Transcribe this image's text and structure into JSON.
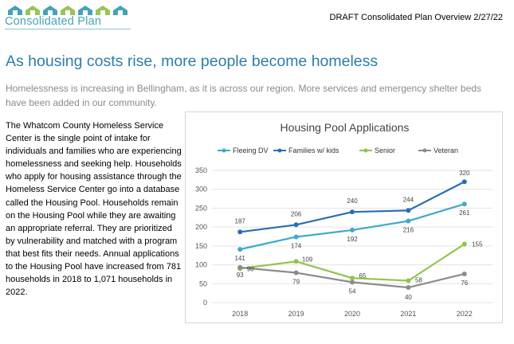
{
  "header": {
    "logo_text": "Consolidated Plan",
    "doc_title": "DRAFT Consolidated Plan Overview 2/27/22"
  },
  "page": {
    "title": "As housing costs rise, more people become homeless",
    "lead": "Homelessness is increasing in Bellingham, as it is across our region. More services and emergency shelter beds have been added in our community.",
    "body": "The Whatcom County Homeless Service Center is the single point of intake for individuals and families who are experiencing homelessness and seeking help. Households who apply for housing assistance through the Homeless Service Center go into a database called the Housing Pool. Households remain on the Housing Pool while they are awaiting an appropriate referral. They are prioritized by vulnerability and matched with a program that best fits their needs. Annual applications to the Housing Pool have increased from 781 households in 2018 to 1,071 households in 2022."
  },
  "colors": {
    "logo_teal": "#46a3b6",
    "logo_green": "#9ac356",
    "title_blue": "#2e7da9"
  },
  "chart_data": {
    "type": "line",
    "title": "Housing Pool Applications",
    "x": [
      "2018",
      "2019",
      "2020",
      "2021",
      "2022"
    ],
    "yticks": [
      0,
      50,
      100,
      150,
      200,
      250,
      300,
      350
    ],
    "ylim": [
      0,
      350
    ],
    "grid": true,
    "legend": "top",
    "series": [
      {
        "name": "Fleeing DV",
        "color": "#3fa9c9",
        "values": [
          141,
          174,
          192,
          216,
          261
        ]
      },
      {
        "name": "Families w/ kids",
        "color": "#2e6db0",
        "values": [
          187,
          206,
          240,
          244,
          320
        ]
      },
      {
        "name": "Senior",
        "color": "#8fc548",
        "values": [
          90,
          109,
          65,
          58,
          155
        ]
      },
      {
        "name": "Veteran",
        "color": "#8c8c8c",
        "values": [
          93,
          79,
          54,
          40,
          76
        ]
      }
    ]
  }
}
